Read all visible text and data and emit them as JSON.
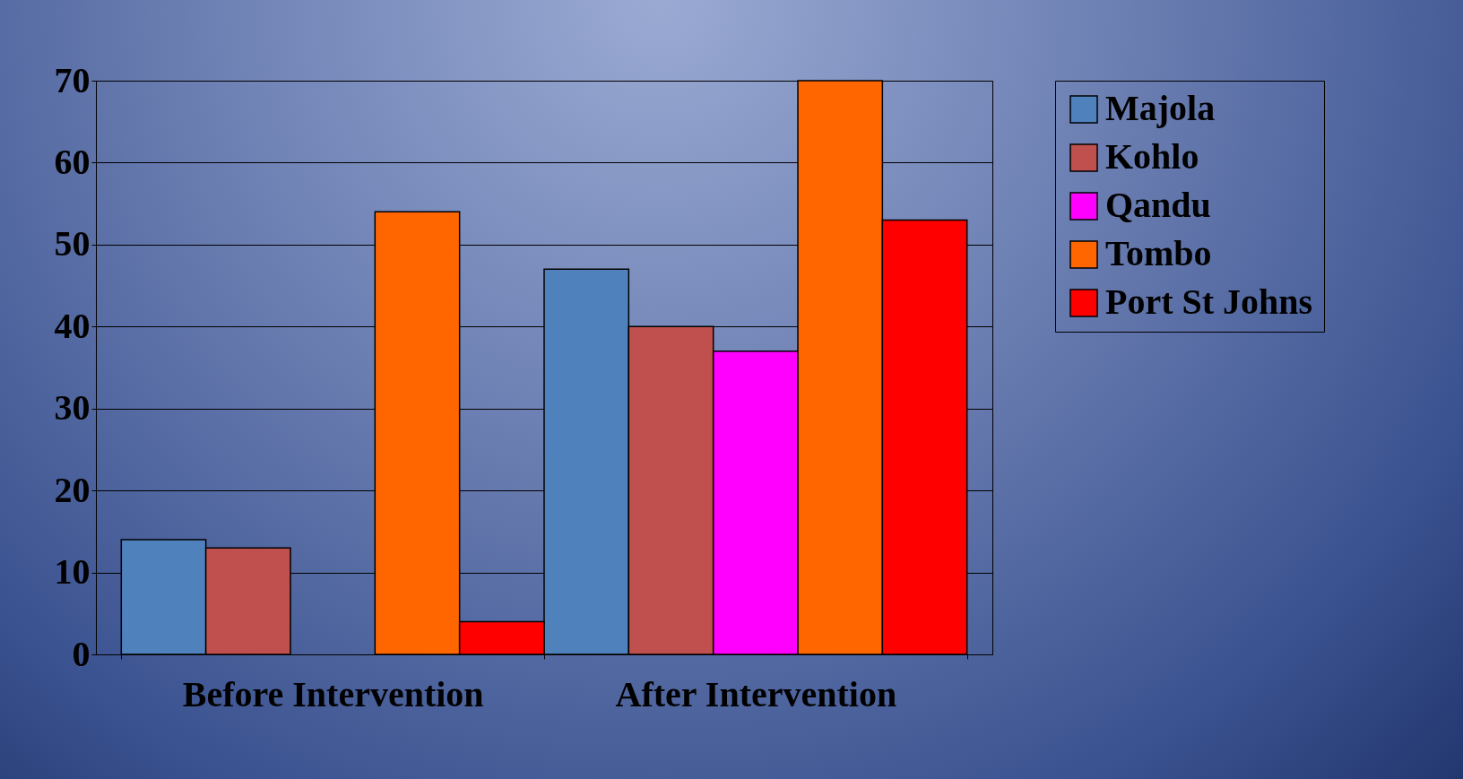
{
  "chart_data": {
    "type": "bar",
    "categories": [
      "Before Intervention",
      "After Intervention"
    ],
    "series": [
      {
        "name": "Majola",
        "color": "#4f81bd",
        "values": [
          14,
          47
        ]
      },
      {
        "name": "Kohlo",
        "color": "#c0504d",
        "values": [
          13,
          40
        ]
      },
      {
        "name": "Qandu",
        "color": "#ff00ff",
        "values": [
          0,
          37
        ]
      },
      {
        "name": "Tombo",
        "color": "#ff6600",
        "values": [
          54,
          70
        ]
      },
      {
        "name": "Port St Johns",
        "color": "#ff0000",
        "values": [
          4,
          53
        ]
      }
    ],
    "ylim": [
      0,
      70
    ],
    "yticks": [
      0,
      10,
      20,
      30,
      40,
      50,
      60,
      70
    ],
    "grid": "y",
    "legend": "right"
  }
}
